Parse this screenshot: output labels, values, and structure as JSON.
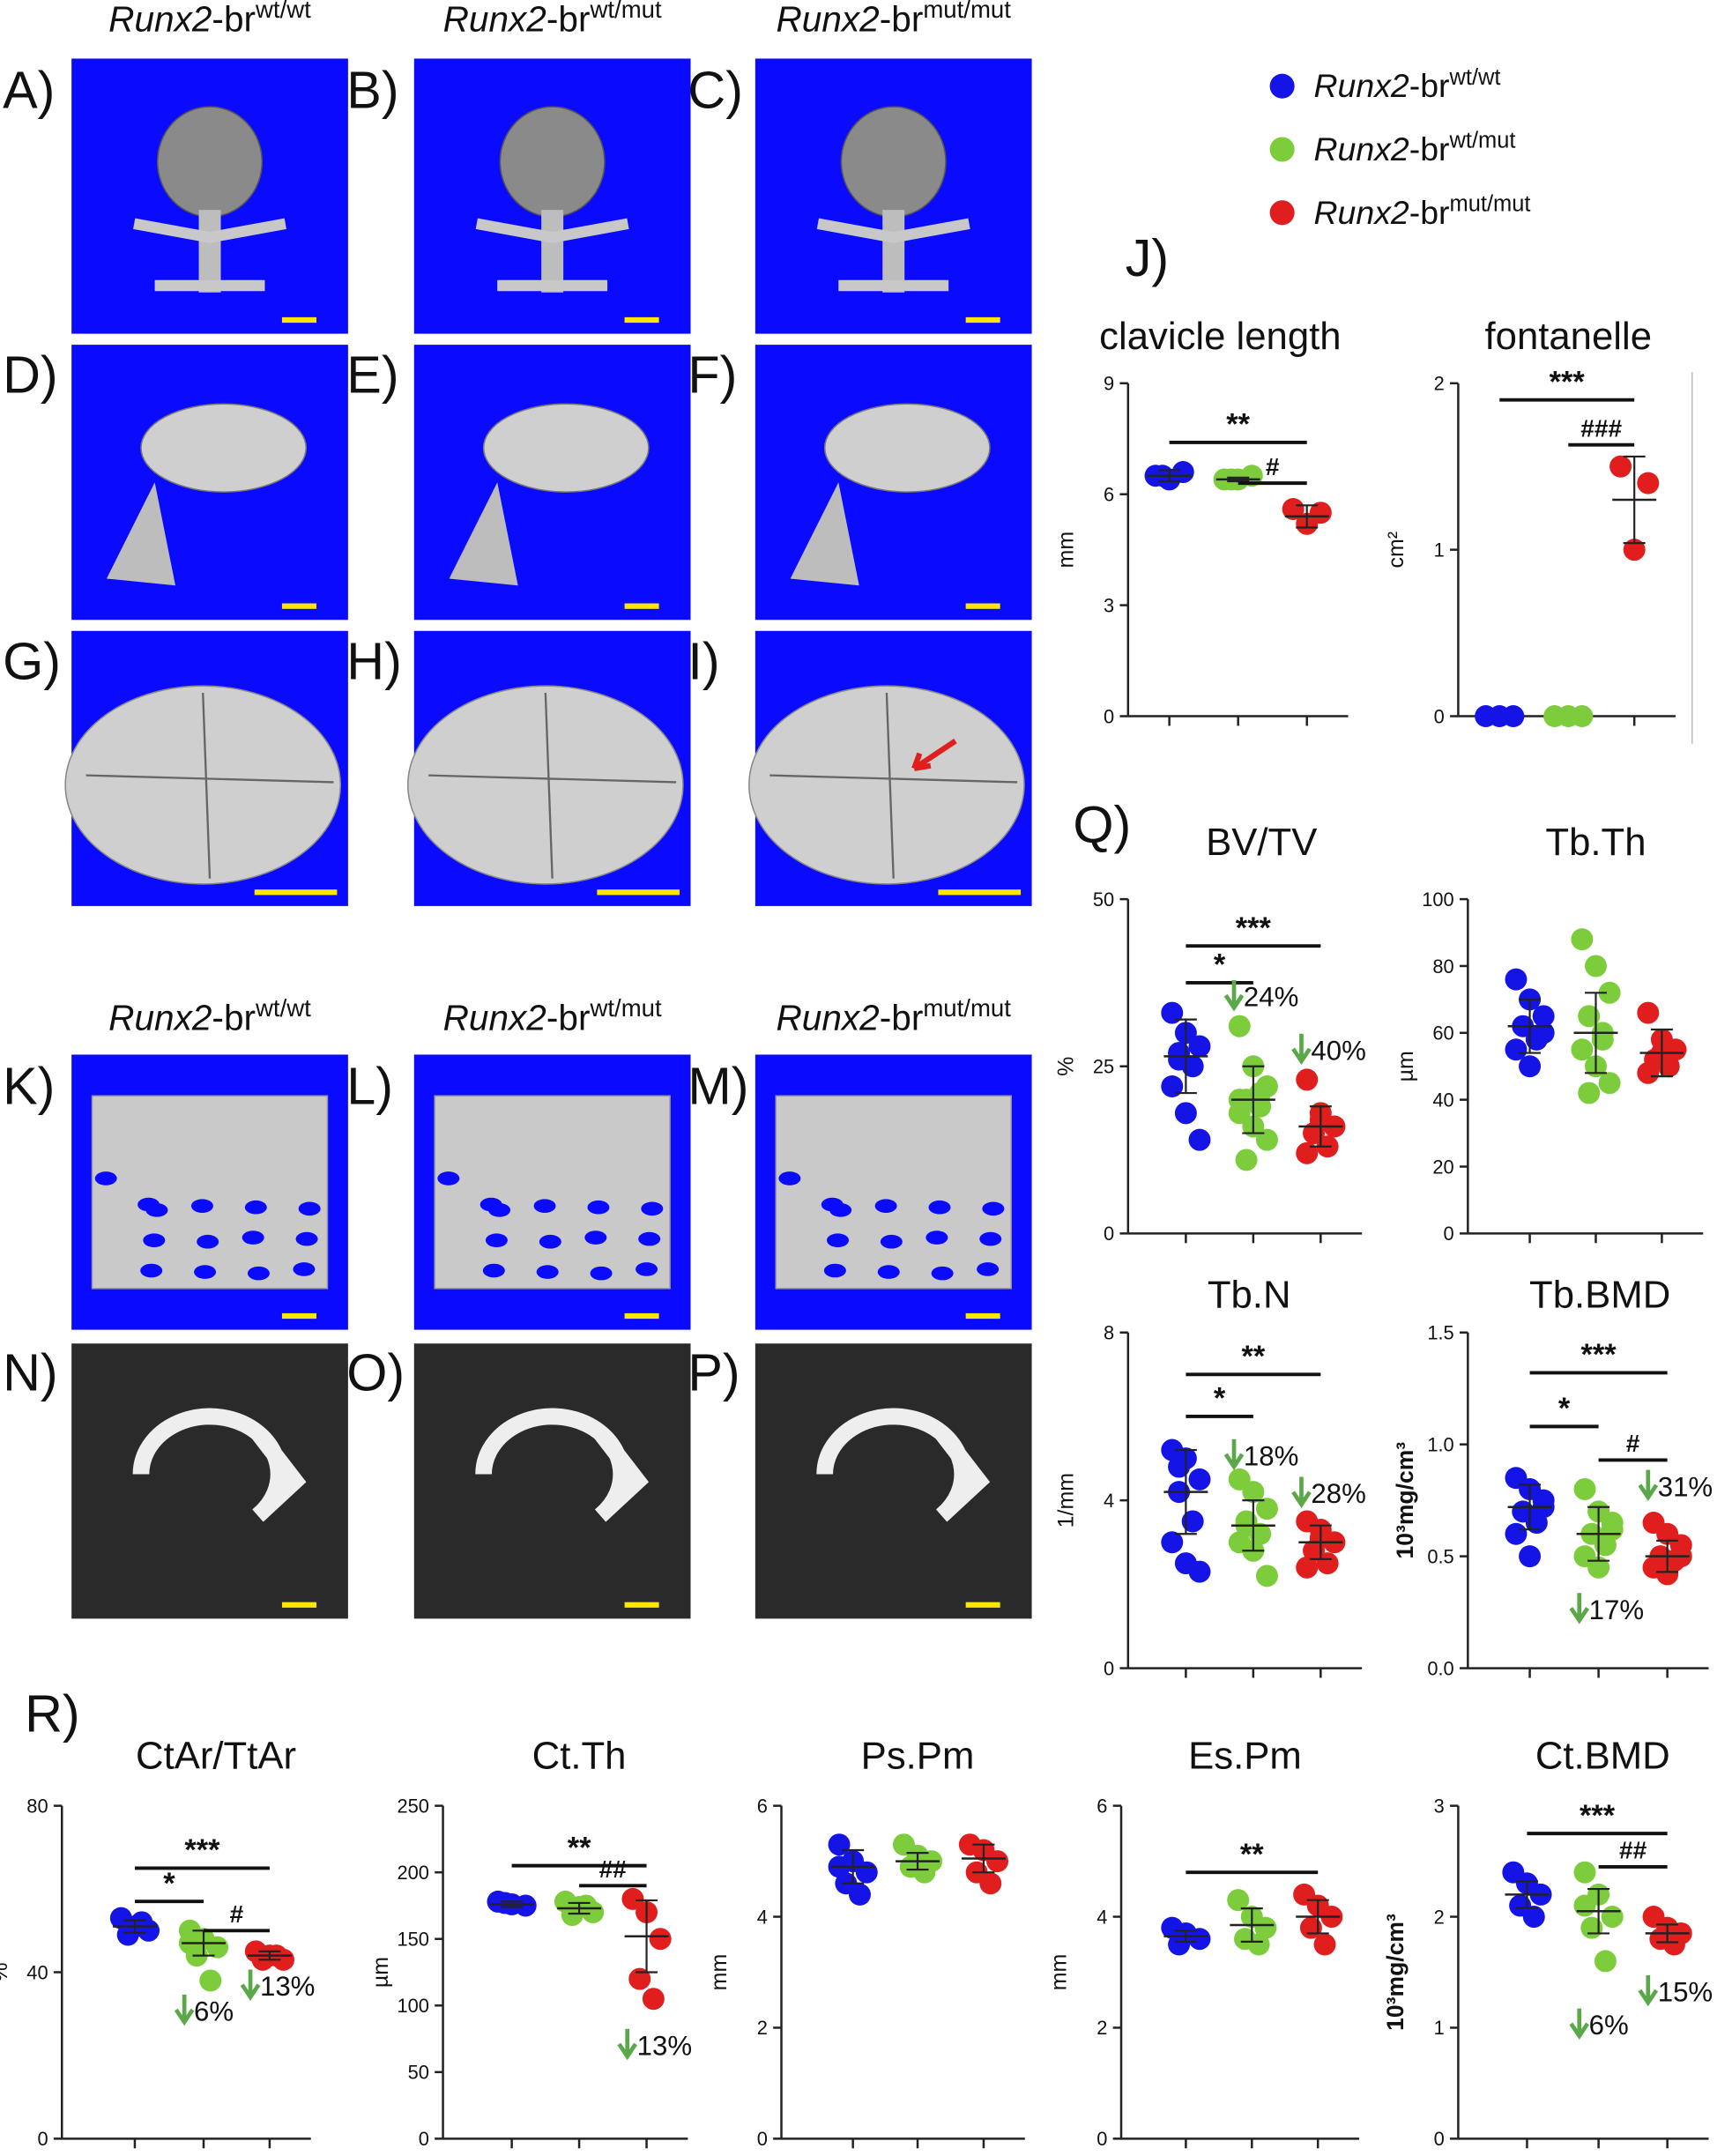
{
  "panel_labels": [
    "A)",
    "B)",
    "C)",
    "D)",
    "E)",
    "F)",
    "G)",
    "H)",
    "I)",
    "J)",
    "K)",
    "L)",
    "M)",
    "N)",
    "O)",
    "P)",
    "Q)",
    "R)"
  ],
  "image_headers": [
    [
      {
        "gene": "Runx2",
        "rest": "-br",
        "sup": "wt/wt"
      },
      {
        "gene": "Runx2",
        "rest": "-br",
        "sup": "wt/mut"
      },
      {
        "gene": "Runx2",
        "rest": "-br",
        "sup": "mut/mut"
      }
    ],
    [
      {
        "gene": "Runx2",
        "rest": "-br",
        "sup": "wt/wt"
      },
      {
        "gene": "Runx2",
        "rest": "-br",
        "sup": "wt/mut"
      },
      {
        "gene": "Runx2",
        "rest": "-br",
        "sup": "mut/mut"
      }
    ]
  ],
  "legend": [
    {
      "gene": "Runx2",
      "rest": "-br",
      "sup": "wt/wt",
      "color": "#1414e6"
    },
    {
      "gene": "Runx2",
      "rest": "-br",
      "sup": "wt/mut",
      "color": "#7ccc3c"
    },
    {
      "gene": "Runx2",
      "rest": "-br",
      "sup": "mut/mut",
      "color": "#e01e1e"
    }
  ],
  "chart_data": [
    {
      "type": "dot",
      "title": "clavicle length",
      "y_label": "mm",
      "ylim": [
        0,
        9
      ],
      "yticks": [
        0,
        3,
        6,
        9
      ],
      "series": [
        {
          "color": "#1414e6",
          "values": [
            6.5,
            6.4,
            6.6,
            6.5
          ],
          "mean": 6.5,
          "sd": 0.15
        },
        {
          "color": "#7ccc3c",
          "values": [
            6.4,
            6.4,
            6.5,
            6.4
          ],
          "mean": 6.4,
          "sd": 0.05
        },
        {
          "color": "#e01e1e",
          "values": [
            5.6,
            5.2,
            5.5
          ],
          "mean": 5.4,
          "sd": 0.3
        }
      ],
      "significance": [
        {
          "label": "**",
          "from": 0,
          "to": 2,
          "y": 7.4
        },
        {
          "label": "#",
          "from": 1,
          "to": 2,
          "y": 6.3
        }
      ],
      "changes": []
    },
    {
      "type": "dot",
      "title": "fontanelle",
      "y_label": "cm²",
      "ylim": [
        0,
        2
      ],
      "yticks": [
        0,
        1,
        2
      ],
      "series": [
        {
          "color": "#1414e6",
          "values": [
            0,
            0,
            0
          ]
        },
        {
          "color": "#7ccc3c",
          "values": [
            0,
            0,
            0
          ]
        },
        {
          "color": "#e01e1e",
          "values": [
            1.5,
            1.0,
            1.4
          ],
          "mean": 1.3,
          "sd": 0.26
        }
      ],
      "significance": [
        {
          "label": "***",
          "from": 0,
          "to": 2,
          "y": 1.9
        },
        {
          "label": "###",
          "from": 1,
          "to": 2,
          "y": 1.63
        }
      ],
      "changes": []
    },
    {
      "type": "dot",
      "title": "BV/TV",
      "y_label": "%",
      "ylim": [
        0,
        50
      ],
      "yticks": [
        0,
        25,
        50
      ],
      "series": [
        {
          "color": "#1414e6",
          "values": [
            33,
            30,
            28,
            27,
            25,
            22,
            18,
            14,
            26
          ],
          "mean": 26.5,
          "sd": 5.5
        },
        {
          "color": "#7ccc3c",
          "values": [
            31,
            25,
            22,
            20,
            19,
            18,
            16,
            14,
            11,
            21,
            20
          ],
          "mean": 20,
          "sd": 5
        },
        {
          "color": "#e01e1e",
          "values": [
            23,
            18,
            16,
            15,
            13,
            12,
            17
          ],
          "mean": 16,
          "sd": 3
        }
      ],
      "significance": [
        {
          "label": "***",
          "from": 0,
          "to": 2,
          "y": 43
        },
        {
          "label": "*",
          "from": 0,
          "to": 1,
          "y": 37.5
        }
      ],
      "changes": [
        {
          "label": "24%",
          "group": 1,
          "y": 35
        },
        {
          "label": "40%",
          "group": 2,
          "y": 27
        }
      ]
    },
    {
      "type": "dot",
      "title": "Tb.Th",
      "y_label": "µm",
      "ylim": [
        0,
        100
      ],
      "yticks": [
        0,
        20,
        40,
        60,
        80,
        100
      ],
      "series": [
        {
          "color": "#1414e6",
          "values": [
            76,
            70,
            65,
            62,
            58,
            55,
            50,
            60
          ],
          "mean": 62,
          "sd": 8
        },
        {
          "color": "#7ccc3c",
          "values": [
            88,
            80,
            72,
            65,
            60,
            55,
            50,
            45,
            42,
            58
          ],
          "mean": 60,
          "sd": 12
        },
        {
          "color": "#e01e1e",
          "values": [
            66,
            58,
            55,
            52,
            50,
            48,
            54
          ],
          "mean": 54,
          "sd": 7
        }
      ],
      "significance": [],
      "changes": []
    },
    {
      "type": "dot",
      "title": "Tb.N",
      "y_label": "1/mm",
      "ylim": [
        0,
        8
      ],
      "yticks": [
        0,
        4,
        8
      ],
      "series": [
        {
          "color": "#1414e6",
          "values": [
            5.2,
            5.0,
            4.5,
            4.2,
            3.5,
            3.0,
            2.5,
            2.3,
            4.8
          ],
          "mean": 4.2,
          "sd": 1
        },
        {
          "color": "#7ccc3c",
          "values": [
            4.5,
            4.2,
            3.8,
            3.5,
            3.2,
            3.0,
            2.8,
            2.2,
            3.4
          ],
          "mean": 3.4,
          "sd": 0.6
        },
        {
          "color": "#e01e1e",
          "values": [
            3.5,
            3.3,
            3.0,
            2.8,
            2.5,
            2.4,
            3.1
          ],
          "mean": 3.0,
          "sd": 0.4
        }
      ],
      "significance": [
        {
          "label": "**",
          "from": 0,
          "to": 2,
          "y": 7.0
        },
        {
          "label": "*",
          "from": 0,
          "to": 1,
          "y": 6.0
        }
      ],
      "changes": [
        {
          "label": "18%",
          "group": 1,
          "y": 5.0
        },
        {
          "label": "28%",
          "group": 2,
          "y": 4.1
        }
      ]
    },
    {
      "type": "dot",
      "title": "Tb.BMD",
      "y_label": "10³mg/cm³",
      "ylim": [
        0,
        1.5
      ],
      "yticks": [
        {
          "value": 0,
          "label": "0.0"
        },
        {
          "value": 0.5,
          "label": "0.5"
        },
        {
          "value": 1,
          "label": "1.0"
        },
        {
          "value": 1.5,
          "label": "1.5"
        }
      ],
      "series": [
        {
          "color": "#1414e6",
          "values": [
            0.85,
            0.8,
            0.75,
            0.7,
            0.65,
            0.6,
            0.5,
            0.72
          ],
          "mean": 0.72,
          "sd": 0.1
        },
        {
          "color": "#7ccc3c",
          "values": [
            0.8,
            0.7,
            0.65,
            0.6,
            0.55,
            0.5,
            0.45,
            0.62
          ],
          "mean": 0.6,
          "sd": 0.12
        },
        {
          "color": "#e01e1e",
          "values": [
            0.65,
            0.6,
            0.55,
            0.5,
            0.48,
            0.45,
            0.42,
            0.5
          ],
          "mean": 0.5,
          "sd": 0.07
        }
      ],
      "significance": [
        {
          "label": "***",
          "from": 0,
          "to": 2,
          "y": 1.32
        },
        {
          "label": "*",
          "from": 0,
          "to": 1,
          "y": 1.08
        },
        {
          "label": "#",
          "from": 1,
          "to": 2,
          "y": 0.93
        }
      ],
      "changes": [
        {
          "label": "31%",
          "group": 2,
          "y": 0.8
        },
        {
          "label": "17%",
          "group": 1,
          "y": 0.25
        }
      ]
    },
    {
      "type": "dot",
      "title": "CtAr/TtAr",
      "y_label": "%",
      "ylim": [
        0,
        80
      ],
      "yticks": [
        0,
        40,
        80
      ],
      "series": [
        {
          "color": "#1414e6",
          "values": [
            53,
            51,
            50,
            49,
            52
          ],
          "mean": 51,
          "sd": 1.5
        },
        {
          "color": "#7ccc3c",
          "values": [
            50,
            48,
            46,
            44,
            38,
            47
          ],
          "mean": 47,
          "sd": 3
        },
        {
          "color": "#e01e1e",
          "values": [
            45,
            44,
            43,
            43,
            44
          ],
          "mean": 44,
          "sd": 1
        }
      ],
      "significance": [
        {
          "label": "***",
          "from": 0,
          "to": 2,
          "y": 65
        },
        {
          "label": "*",
          "from": 0,
          "to": 1,
          "y": 57
        },
        {
          "label": "#",
          "from": 1,
          "to": 2,
          "y": 50
        }
      ],
      "changes": [
        {
          "label": "6%",
          "group": 1,
          "y": 30
        },
        {
          "label": "13%",
          "group": 2,
          "y": 36
        }
      ]
    },
    {
      "type": "dot",
      "title": "Ct.Th",
      "y_label": "µm",
      "ylim": [
        0,
        250
      ],
      "yticks": [
        0,
        50,
        100,
        150,
        200,
        250
      ],
      "series": [
        {
          "color": "#1414e6",
          "values": [
            178,
            176,
            175,
            177
          ],
          "mean": 176,
          "sd": 2
        },
        {
          "color": "#7ccc3c",
          "values": [
            178,
            174,
            170,
            168,
            175
          ],
          "mean": 173,
          "sd": 4
        },
        {
          "color": "#e01e1e",
          "values": [
            180,
            170,
            150,
            120,
            105
          ],
          "mean": 152,
          "sd": 27
        }
      ],
      "significance": [
        {
          "label": "**",
          "from": 0,
          "to": 2,
          "y": 205
        },
        {
          "label": "##",
          "from": 1,
          "to": 2,
          "y": 190
        }
      ],
      "changes": [
        {
          "label": "13%",
          "group": 2,
          "y": 68
        }
      ]
    },
    {
      "type": "dot",
      "title": "Ps.Pm",
      "y_label": "mm",
      "ylim": [
        0,
        6
      ],
      "yticks": [
        0,
        2,
        4,
        6
      ],
      "series": [
        {
          "color": "#1414e6",
          "values": [
            5.3,
            5.0,
            4.8,
            4.6,
            4.4,
            4.9
          ],
          "mean": 4.9,
          "sd": 0.3
        },
        {
          "color": "#7ccc3c",
          "values": [
            5.3,
            5.1,
            5.0,
            4.9,
            4.8
          ],
          "mean": 5.0,
          "sd": 0.15
        },
        {
          "color": "#e01e1e",
          "values": [
            5.3,
            5.2,
            5.0,
            4.8,
            4.6
          ],
          "mean": 5.05,
          "sd": 0.25
        }
      ],
      "significance": [],
      "changes": []
    },
    {
      "type": "dot",
      "title": "Es.Pm",
      "y_label": "mm",
      "ylim": [
        0,
        6
      ],
      "yticks": [
        0,
        2,
        4,
        6
      ],
      "series": [
        {
          "color": "#1414e6",
          "values": [
            3.8,
            3.7,
            3.6,
            3.5
          ],
          "mean": 3.65,
          "sd": 0.1
        },
        {
          "color": "#7ccc3c",
          "values": [
            4.3,
            4.0,
            3.8,
            3.6,
            3.5
          ],
          "mean": 3.85,
          "sd": 0.3
        },
        {
          "color": "#e01e1e",
          "values": [
            4.4,
            4.2,
            4.0,
            3.8,
            3.5
          ],
          "mean": 4.0,
          "sd": 0.3
        }
      ],
      "significance": [
        {
          "label": "**",
          "from": 0,
          "to": 2,
          "y": 4.8
        }
      ],
      "changes": []
    },
    {
      "type": "dot",
      "title": "Ct.BMD",
      "y_label": "10³mg/cm³",
      "ylim": [
        0,
        3
      ],
      "yticks": [
        0,
        1,
        2,
        3
      ],
      "series": [
        {
          "color": "#1414e6",
          "values": [
            2.4,
            2.3,
            2.2,
            2.1,
            2.0
          ],
          "mean": 2.2,
          "sd": 0.12
        },
        {
          "color": "#7ccc3c",
          "values": [
            2.4,
            2.2,
            2.0,
            1.9,
            1.6,
            2.1
          ],
          "mean": 2.05,
          "sd": 0.2
        },
        {
          "color": "#e01e1e",
          "values": [
            2.0,
            1.9,
            1.85,
            1.8,
            1.75
          ],
          "mean": 1.85,
          "sd": 0.08
        }
      ],
      "significance": [
        {
          "label": "***",
          "from": 0,
          "to": 2,
          "y": 2.75
        },
        {
          "label": "##",
          "from": 1,
          "to": 2,
          "y": 2.45
        }
      ],
      "changes": [
        {
          "label": "6%",
          "group": 1,
          "y": 1.0
        },
        {
          "label": "15%",
          "group": 2,
          "y": 1.3
        }
      ]
    }
  ]
}
